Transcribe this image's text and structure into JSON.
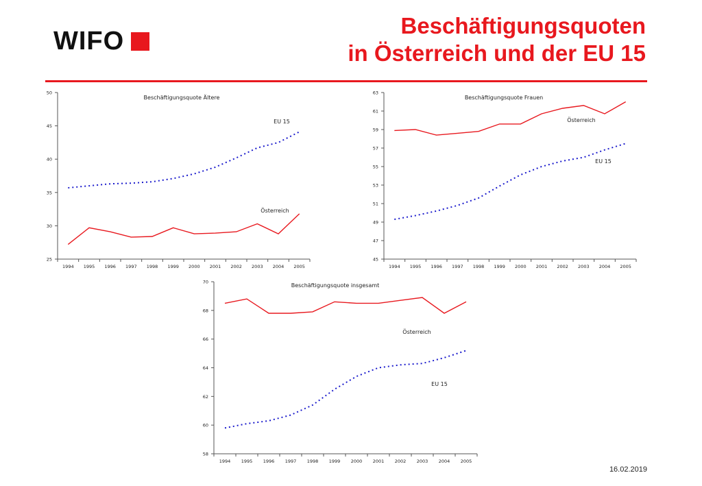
{
  "header": {
    "logo_text": "WIFO",
    "title_line1": "Beschäftigungsquoten",
    "title_line2": "in Österreich und der EU 15"
  },
  "footer": {
    "date": "16.02.2019"
  },
  "colors": {
    "brand_red": "#e8181e",
    "austria_line": "#e8181e",
    "eu15_line": "#1a1acc"
  },
  "chart_data": [
    {
      "type": "line",
      "title": "Beschäftigungsquote Ältere",
      "x": [
        "1994",
        "1995",
        "1996",
        "1997",
        "1998",
        "1999",
        "2000",
        "2001",
        "2002",
        "2003",
        "2004",
        "2005"
      ],
      "ylim": [
        25,
        50
      ],
      "yticks": [
        25,
        30,
        35,
        40,
        45,
        50
      ],
      "grid": false,
      "series": [
        {
          "name": "Österreich",
          "style": "solid",
          "values": [
            27.2,
            29.7,
            29.1,
            28.3,
            28.4,
            29.7,
            28.8,
            28.9,
            29.1,
            30.3,
            28.8,
            31.8
          ]
        },
        {
          "name": "EU 15",
          "style": "dotted",
          "values": [
            35.7,
            36.0,
            36.3,
            36.4,
            36.6,
            37.1,
            37.8,
            38.8,
            40.2,
            41.7,
            42.5,
            44.1
          ]
        }
      ]
    },
    {
      "type": "line",
      "title": "Beschäftigungsquote Frauen",
      "x": [
        "1994",
        "1995",
        "1996",
        "1997",
        "1998",
        "1999",
        "2000",
        "2001",
        "2002",
        "2003",
        "2004",
        "2005"
      ],
      "ylim": [
        45,
        63
      ],
      "yticks": [
        45,
        47,
        49,
        51,
        53,
        55,
        57,
        59,
        61,
        63
      ],
      "grid": false,
      "series": [
        {
          "name": "Österreich",
          "style": "solid",
          "values": [
            58.9,
            59.0,
            58.4,
            58.6,
            58.8,
            59.6,
            59.6,
            60.7,
            61.3,
            61.6,
            60.7,
            62.0
          ]
        },
        {
          "name": "EU 15",
          "style": "dotted",
          "values": [
            49.3,
            49.7,
            50.2,
            50.8,
            51.6,
            52.9,
            54.1,
            55.0,
            55.6,
            56.0,
            56.8,
            57.5
          ]
        }
      ]
    },
    {
      "type": "line",
      "title": "Beschäftigungsquote insgesamt",
      "x": [
        "1994",
        "1995",
        "1996",
        "1997",
        "1998",
        "1999",
        "2000",
        "2001",
        "2002",
        "2003",
        "2004",
        "2005"
      ],
      "ylim": [
        58,
        70
      ],
      "yticks": [
        58,
        60,
        62,
        64,
        66,
        68,
        70
      ],
      "grid": false,
      "series": [
        {
          "name": "Österreich",
          "style": "solid",
          "values": [
            68.5,
            68.8,
            67.8,
            67.8,
            67.9,
            68.6,
            68.5,
            68.5,
            68.7,
            68.9,
            67.8,
            68.6
          ]
        },
        {
          "name": "EU 15",
          "style": "dotted",
          "values": [
            59.8,
            60.1,
            60.3,
            60.7,
            61.4,
            62.5,
            63.4,
            64.0,
            64.2,
            64.3,
            64.7,
            65.2
          ]
        }
      ]
    }
  ]
}
